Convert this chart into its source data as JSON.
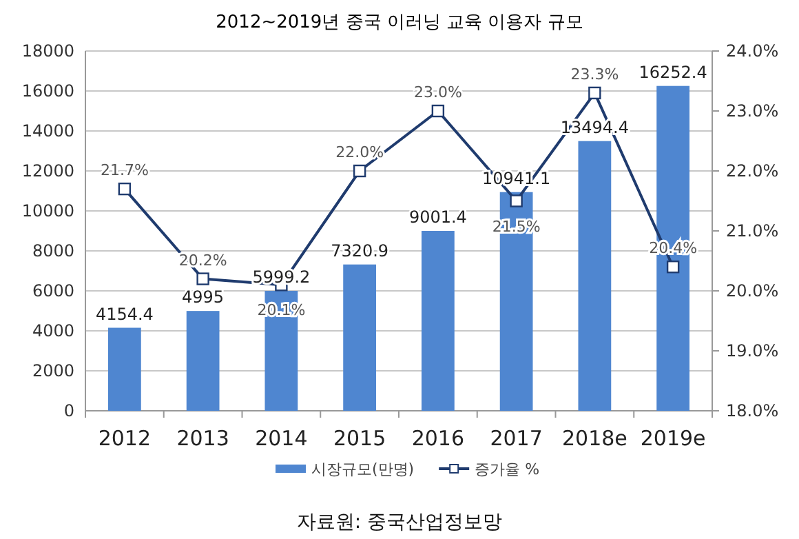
{
  "chart_data": {
    "type": "bar",
    "title": "2012~2019년 중국 이러닝 교육 이용자 규모",
    "categories": [
      "2012",
      "2013",
      "2014",
      "2015",
      "2016",
      "2017",
      "2018e",
      "2019e"
    ],
    "series": [
      {
        "name": "시장규모(만명)",
        "color": "#4f86d0",
        "values": [
          4154.4,
          4995,
          5999.2,
          7320.9,
          9001.4,
          10941.1,
          13494.4,
          16252.4
        ],
        "value_labels": [
          "4154.4",
          "4995",
          "5999.2",
          "7320.9",
          "9001.4",
          "10941.1",
          "13494.4",
          "16252.4"
        ]
      },
      {
        "name": "증가율 %",
        "type": "line",
        "axis": "y2",
        "color": "#1f3b6e",
        "marker": "square",
        "values": [
          21.7,
          20.2,
          20.1,
          22.0,
          23.0,
          21.5,
          23.3,
          20.4
        ],
        "value_labels": [
          "21.7%",
          "20.2%",
          "20.1%",
          "22.0%",
          "23.0%",
          "21.5%",
          "23.3%",
          "20.4%"
        ]
      }
    ],
    "ylim": [
      0,
      18000
    ],
    "yticks": [
      0,
      2000,
      4000,
      6000,
      8000,
      10000,
      12000,
      14000,
      16000,
      18000
    ],
    "y2lim": [
      18,
      24
    ],
    "y2ticks": [
      {
        "value": 18,
        "label": "18.0%"
      },
      {
        "value": 19,
        "label": "19.0%"
      },
      {
        "value": 20,
        "label": "20.0%"
      },
      {
        "value": 21,
        "label": "21.0%"
      },
      {
        "value": 22,
        "label": "22.0%"
      },
      {
        "value": 23,
        "label": "23.0%"
      },
      {
        "value": 24,
        "label": "24.0%"
      }
    ],
    "grid": "y",
    "legend": "bottom",
    "annotations": [
      "자료원: 중국산업정보망"
    ]
  }
}
